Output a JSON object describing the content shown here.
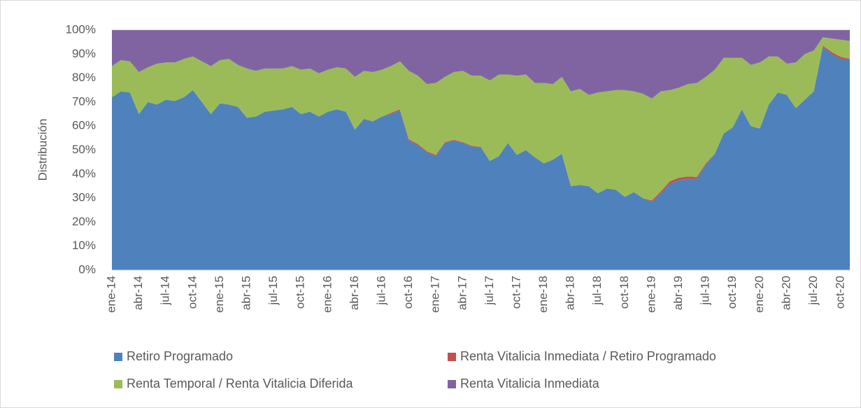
{
  "chart_data": {
    "type": "stacked-area",
    "y_label": "Distribución",
    "categories": [
      "ene-14",
      null,
      null,
      "abr-14",
      null,
      null,
      "jul-14",
      null,
      null,
      "oct-14",
      null,
      null,
      "ene-15",
      null,
      null,
      "abr-15",
      null,
      null,
      "jul-15",
      null,
      null,
      "oct-15",
      null,
      null,
      "ene-16",
      null,
      null,
      "abr-16",
      null,
      null,
      "jul-16",
      null,
      null,
      "oct-16",
      null,
      null,
      "ene-17",
      null,
      null,
      "abr-17",
      null,
      null,
      "jul-17",
      null,
      null,
      "oct-17",
      null,
      null,
      "ene-18",
      null,
      null,
      "abr-18",
      null,
      null,
      "jul-18",
      null,
      null,
      "oct-18",
      null,
      null,
      "ene-19",
      null,
      null,
      "abr-19",
      null,
      null,
      "jul-19",
      null,
      null,
      "oct-19",
      null,
      null,
      "ene-20",
      null,
      null,
      "abr-20",
      null,
      null,
      "jul-20",
      null,
      null,
      "oct-20",
      null
    ],
    "series": [
      {
        "name": "Retiro Programado",
        "color": "#4f81bd",
        "values": [
          72,
          74.5,
          74,
          65,
          70,
          69,
          71,
          70.5,
          72,
          75,
          70,
          65,
          69.5,
          69,
          68,
          63.5,
          64,
          66,
          66.5,
          67,
          68,
          65,
          66,
          64,
          66,
          67,
          66,
          58.5,
          63,
          62,
          64,
          65,
          66.5,
          54,
          52,
          49,
          47.5,
          53,
          54,
          53,
          51.5,
          51,
          45.5,
          47.5,
          53,
          48,
          50,
          47,
          44.5,
          46,
          48.5,
          35,
          35.5,
          35,
          32,
          34,
          33.5,
          30.5,
          32.5,
          30,
          28.5,
          32,
          36,
          37.5,
          38,
          38,
          44,
          48.5,
          57,
          59.5,
          67,
          60,
          59,
          69,
          74,
          73,
          67.5,
          71,
          74.5,
          93,
          90,
          88,
          87.5
        ]
      },
      {
        "name": "Renta Vitalicia Inmediata / Retiro Programado",
        "color": "#c0504d",
        "values": [
          0,
          0,
          0,
          0,
          0,
          0,
          0,
          0,
          0,
          0,
          0,
          0,
          0,
          0,
          0,
          0,
          0,
          0,
          0,
          0,
          0,
          0,
          0,
          0,
          0,
          0,
          0,
          0,
          0,
          0,
          0,
          0.5,
          0.5,
          0.5,
          0.5,
          0.5,
          0.5,
          0.3,
          0.3,
          0.3,
          0.3,
          0.3,
          0,
          0,
          0,
          0,
          0,
          0,
          0,
          0,
          0,
          0,
          0,
          0,
          0,
          0,
          0,
          0,
          0,
          0,
          0.5,
          0.8,
          1,
          1,
          1,
          0.8,
          0.5,
          0,
          0,
          0,
          0,
          0,
          0,
          0,
          0,
          0,
          0,
          0,
          0,
          0.5,
          0.8,
          0.8,
          0.5
        ]
      },
      {
        "name": "Renta Temporal / Renta Vitalicia Diferida",
        "color": "#9bbb59",
        "values": [
          13,
          13,
          13,
          17.5,
          14.5,
          17,
          15.5,
          16,
          16,
          14,
          17,
          20,
          18,
          19,
          17.5,
          20.5,
          19,
          18,
          17.5,
          17,
          17,
          18.5,
          18,
          18,
          17.5,
          17.5,
          18,
          22,
          20,
          20.5,
          19.5,
          19.5,
          20,
          28.5,
          28.5,
          28,
          30,
          27.2,
          28.2,
          29.7,
          29.2,
          29.7,
          33.5,
          34,
          28.5,
          33,
          31.5,
          31,
          33.5,
          31.5,
          32,
          39.5,
          40,
          38,
          42,
          40.5,
          41.5,
          44.5,
          42,
          43.5,
          42.5,
          41.7,
          38,
          37.5,
          38.5,
          39.2,
          36,
          35,
          31.5,
          29,
          21.5,
          25.5,
          27.5,
          20,
          15,
          13,
          19,
          19,
          17,
          3.5,
          5.7,
          7.2,
          7.5
        ]
      },
      {
        "name": "Renta Vitalicia Inmediata",
        "color": "#8064a2",
        "values": [
          15,
          12.5,
          13,
          17.5,
          15.5,
          14,
          13.5,
          13.5,
          12,
          11,
          13,
          15,
          12.5,
          12,
          14.5,
          16,
          17,
          16,
          16,
          16,
          15,
          16.5,
          16,
          18,
          16.5,
          15.5,
          16,
          19.5,
          17,
          17.5,
          16.5,
          15,
          13,
          17,
          19,
          22.5,
          22,
          19.5,
          17.5,
          17,
          19,
          19,
          21,
          18.5,
          18.5,
          19,
          18.5,
          22,
          22,
          22.5,
          19.5,
          25.5,
          24.5,
          27,
          26,
          25.5,
          25,
          25,
          25.5,
          26.5,
          28.5,
          25.5,
          25,
          24,
          22.5,
          22,
          19.5,
          16.5,
          11.5,
          11.5,
          11.5,
          14.5,
          13.5,
          11,
          11,
          14,
          13.5,
          10,
          8.5,
          3,
          3.5,
          4,
          4.5
        ]
      }
    ],
    "ylim": [
      0,
      100
    ],
    "yticks": [
      {
        "value": 0,
        "label": "0%"
      },
      {
        "value": 10,
        "label": "10%"
      },
      {
        "value": 20,
        "label": "20%"
      },
      {
        "value": 30,
        "label": "30%"
      },
      {
        "value": 40,
        "label": "40%"
      },
      {
        "value": 50,
        "label": "50%"
      },
      {
        "value": 60,
        "label": "60%"
      },
      {
        "value": 70,
        "label": "70%"
      },
      {
        "value": 80,
        "label": "80%"
      },
      {
        "value": 90,
        "label": "90%"
      },
      {
        "value": 100,
        "label": "100%"
      }
    ],
    "grid": true
  }
}
